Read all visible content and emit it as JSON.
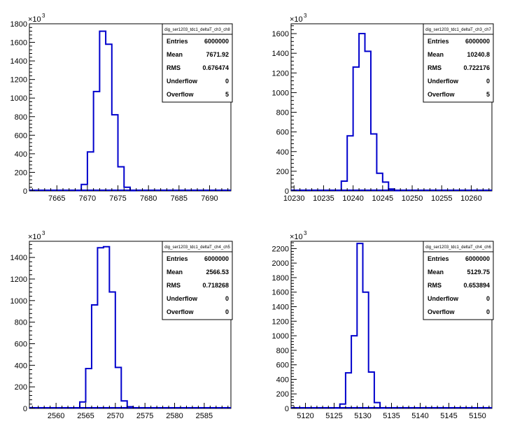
{
  "chart_data": [
    {
      "type": "bar",
      "hist_name": "dig_ser1203_tdc1_deltaT_ch3_ch8",
      "y_multiplier_label": "×10",
      "y_multiplier_exp": "3",
      "xlim": [
        7660.5,
        7693.5
      ],
      "ylim": [
        0,
        1800
      ],
      "x_ticks": [
        7665,
        7670,
        7675,
        7680,
        7685,
        7690
      ],
      "y_ticks": [
        0,
        200,
        400,
        600,
        800,
        1000,
        1200,
        1400,
        1600,
        1800
      ],
      "bins": [
        {
          "x": 7668.5,
          "y": 5
        },
        {
          "x": 7669.5,
          "y": 70
        },
        {
          "x": 7670.5,
          "y": 420
        },
        {
          "x": 7671.5,
          "y": 1070
        },
        {
          "x": 7672.5,
          "y": 1720
        },
        {
          "x": 7673.5,
          "y": 1580
        },
        {
          "x": 7674.5,
          "y": 820
        },
        {
          "x": 7675.5,
          "y": 260
        },
        {
          "x": 7676.5,
          "y": 40
        },
        {
          "x": 7677.5,
          "y": 3
        }
      ],
      "stats": [
        {
          "label": "Entries",
          "value": "6000000"
        },
        {
          "label": "Mean",
          "value": "7671.92"
        },
        {
          "label": "RMS",
          "value": "0.676474"
        },
        {
          "label": "Underflow",
          "value": "0"
        },
        {
          "label": "Overflow",
          "value": "5"
        }
      ]
    },
    {
      "type": "bar",
      "hist_name": "dig_ser1203_tdc1_deltaT_ch3_ch7",
      "y_multiplier_label": "×10",
      "y_multiplier_exp": "3",
      "xlim": [
        10229.5,
        10263.5
      ],
      "ylim": [
        0,
        1700
      ],
      "x_ticks": [
        10230,
        10235,
        10240,
        10245,
        10250,
        10255,
        10260
      ],
      "y_ticks": [
        0,
        200,
        400,
        600,
        800,
        1000,
        1200,
        1400,
        1600
      ],
      "bins": [
        {
          "x": 10237.5,
          "y": 5
        },
        {
          "x": 10238.5,
          "y": 100
        },
        {
          "x": 10239.5,
          "y": 560
        },
        {
          "x": 10240.5,
          "y": 1260
        },
        {
          "x": 10241.5,
          "y": 1600
        },
        {
          "x": 10242.5,
          "y": 1420
        },
        {
          "x": 10243.5,
          "y": 580
        },
        {
          "x": 10244.5,
          "y": 180
        },
        {
          "x": 10245.5,
          "y": 90
        },
        {
          "x": 10246.5,
          "y": 20
        },
        {
          "x": 10247.5,
          "y": 3
        }
      ],
      "stats": [
        {
          "label": "Entries",
          "value": "6000000"
        },
        {
          "label": "Mean",
          "value": "10240.8"
        },
        {
          "label": "RMS",
          "value": "0.722176"
        },
        {
          "label": "Underflow",
          "value": "0"
        },
        {
          "label": "Overflow",
          "value": "5"
        }
      ]
    },
    {
      "type": "bar",
      "hist_name": "dig_ser1203_tdc1_deltaT_ch4_ch5",
      "y_multiplier_label": "×10",
      "y_multiplier_exp": "3",
      "xlim": [
        2555.5,
        2589.5
      ],
      "ylim": [
        0,
        1550
      ],
      "x_ticks": [
        2560,
        2565,
        2570,
        2575,
        2580,
        2585
      ],
      "y_ticks": [
        0,
        200,
        400,
        600,
        800,
        1000,
        1200,
        1400
      ],
      "bins": [
        {
          "x": 2563.5,
          "y": 5
        },
        {
          "x": 2564.5,
          "y": 60
        },
        {
          "x": 2565.5,
          "y": 370
        },
        {
          "x": 2566.5,
          "y": 960
        },
        {
          "x": 2567.5,
          "y": 1490
        },
        {
          "x": 2568.5,
          "y": 1500
        },
        {
          "x": 2569.5,
          "y": 1080
        },
        {
          "x": 2570.5,
          "y": 380
        },
        {
          "x": 2571.5,
          "y": 70
        },
        {
          "x": 2572.5,
          "y": 15
        }
      ],
      "stats": [
        {
          "label": "Entries",
          "value": "6000000"
        },
        {
          "label": "Mean",
          "value": "2566.53"
        },
        {
          "label": "RMS",
          "value": "0.718268"
        },
        {
          "label": "Underflow",
          "value": "0"
        },
        {
          "label": "Overflow",
          "value": "0"
        }
      ]
    },
    {
      "type": "bar",
      "hist_name": "dig_ser1203_tdc1_deltaT_ch4_ch6",
      "y_multiplier_label": "×10",
      "y_multiplier_exp": "3",
      "xlim": [
        5117.5,
        5152.5
      ],
      "ylim": [
        0,
        2300
      ],
      "x_ticks": [
        5120,
        5125,
        5130,
        5135,
        5140,
        5145,
        5150
      ],
      "y_ticks": [
        0,
        200,
        400,
        600,
        800,
        1000,
        1200,
        1400,
        1600,
        1800,
        2000,
        2200
      ],
      "bins": [
        {
          "x": 5125.5,
          "y": 5
        },
        {
          "x": 5126.5,
          "y": 60
        },
        {
          "x": 5127.5,
          "y": 490
        },
        {
          "x": 5128.5,
          "y": 1000
        },
        {
          "x": 5129.5,
          "y": 2270
        },
        {
          "x": 5130.5,
          "y": 1600
        },
        {
          "x": 5131.5,
          "y": 500
        },
        {
          "x": 5132.5,
          "y": 80
        },
        {
          "x": 5133.5,
          "y": 5
        }
      ],
      "stats": [
        {
          "label": "Entries",
          "value": "6000000"
        },
        {
          "label": "Mean",
          "value": "5129.75"
        },
        {
          "label": "RMS",
          "value": "0.653894"
        },
        {
          "label": "Underflow",
          "value": "0"
        },
        {
          "label": "Overflow",
          "value": "0"
        }
      ]
    }
  ]
}
